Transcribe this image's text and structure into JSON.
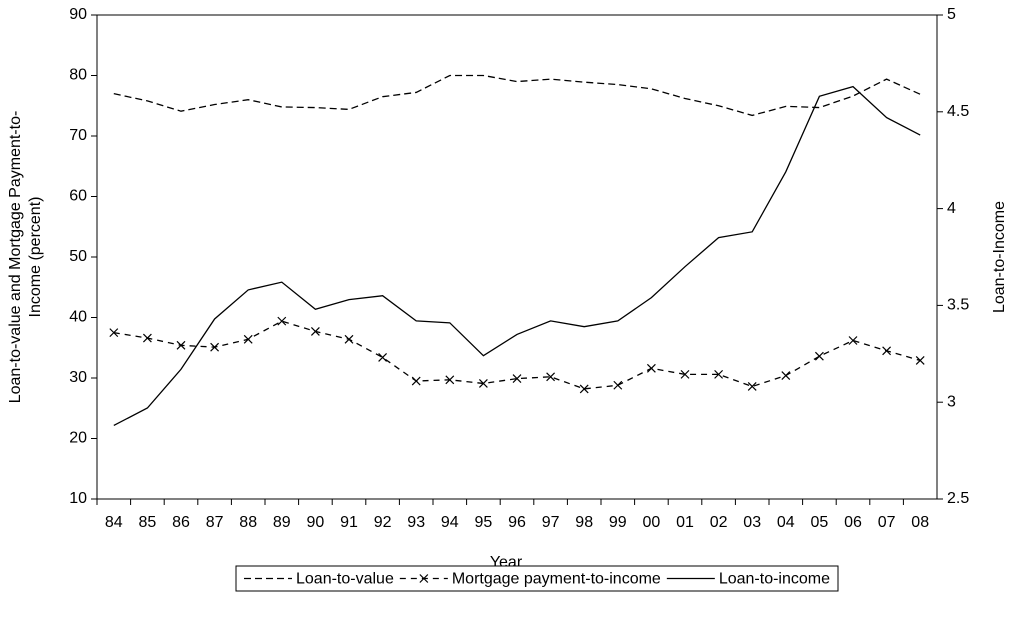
{
  "chart_data": {
    "type": "line",
    "x_label": "Year",
    "y_label": [
      "Loan-to-value and Mortgage Payment-to-",
      "Income (percent)"
    ],
    "y2_label": "Loan-to-Income",
    "categories": [
      "84",
      "85",
      "86",
      "87",
      "88",
      "89",
      "90",
      "91",
      "92",
      "93",
      "94",
      "95",
      "96",
      "97",
      "98",
      "99",
      "00",
      "01",
      "02",
      "03",
      "04",
      "05",
      "06",
      "07",
      "08"
    ],
    "ylim": [
      10,
      90
    ],
    "yticks": [
      10,
      20,
      30,
      40,
      50,
      60,
      70,
      80,
      90
    ],
    "y2lim": [
      2.5,
      5
    ],
    "y2ticks": [
      2.5,
      3,
      3.5,
      4,
      4.5,
      5
    ],
    "grid": false,
    "legend": "bottom",
    "series": [
      {
        "name": "Loan-to-value",
        "color": "#000000",
        "style": "dashed",
        "values": [
          77,
          75.8,
          74.1,
          75.2,
          76,
          74.8,
          74.7,
          74.4,
          76.5,
          77.2,
          80,
          80,
          79,
          79.4,
          78.9,
          78.5,
          77.8,
          76.2,
          75,
          73.4,
          74.9,
          74.7,
          76.6,
          79.4,
          76.9
        ]
      },
      {
        "name": "Mortgage payment-to-income",
        "color": "#000000",
        "style": "dashed",
        "marker": "x",
        "values": [
          37.5,
          36.6,
          35.4,
          35.1,
          36.4,
          39.4,
          37.7,
          36.4,
          33.4,
          29.5,
          29.7,
          29.1,
          29.9,
          30.2,
          28.2,
          28.8,
          31.6,
          30.6,
          30.6,
          28.6,
          30.4,
          33.6,
          36.2,
          34.5,
          32.9
        ]
      },
      {
        "name": "Loan-to-income",
        "color": "#000000",
        "style": "solid",
        "axis": "y2",
        "values": [
          2.88,
          2.97,
          3.17,
          3.43,
          3.58,
          3.62,
          3.48,
          3.53,
          3.55,
          3.42,
          3.41,
          3.24,
          3.35,
          3.42,
          3.39,
          3.42,
          3.54,
          3.7,
          3.85,
          3.88,
          4.19,
          4.58,
          4.63,
          4.47,
          4.38
        ]
      }
    ]
  }
}
